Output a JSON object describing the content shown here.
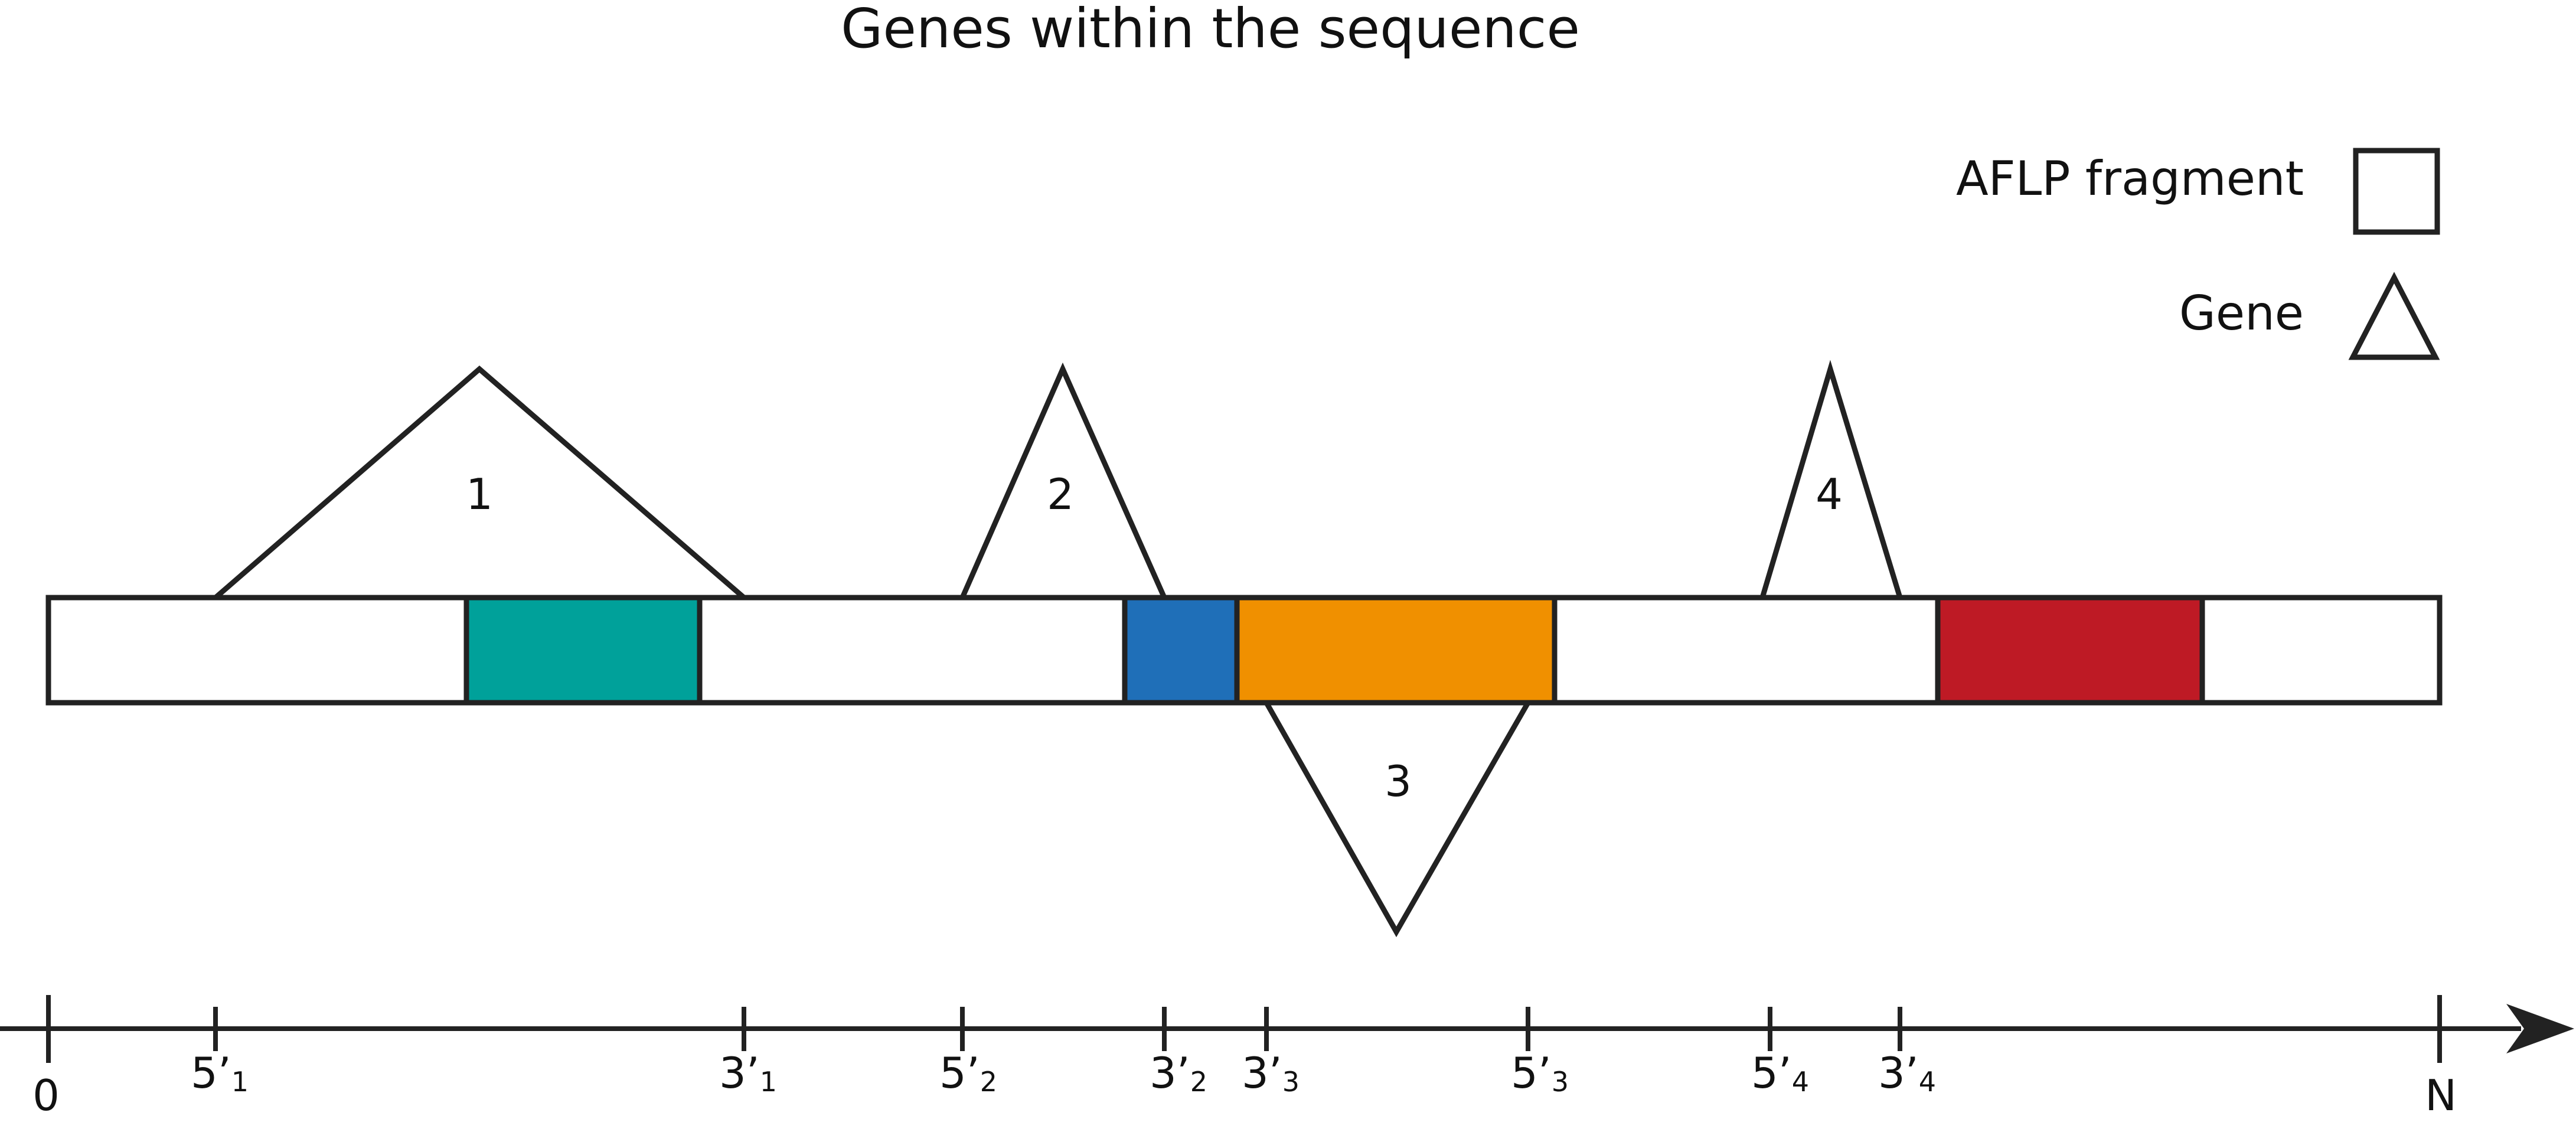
{
  "title": "Genes within the sequence",
  "legend": {
    "fragment_label": "AFLP fragment",
    "gene_label": "Gene"
  },
  "colors": {
    "outline": "#222222",
    "fragment_teal": "#00A19A",
    "fragment_blue": "#1F6FB8",
    "fragment_orange": "#F09000",
    "fragment_red": "#BE1A25"
  },
  "genes": [
    {
      "label": "1",
      "start_tick": "5'1",
      "end_tick": "3'1",
      "side": "above"
    },
    {
      "label": "2",
      "start_tick": "5'2",
      "end_tick": "3'2",
      "side": "above"
    },
    {
      "label": "3",
      "start_tick": "3'3",
      "end_tick": "5'3",
      "side": "below"
    },
    {
      "label": "4",
      "start_tick": "5'4",
      "end_tick": "3'4",
      "side": "above"
    }
  ],
  "axis": {
    "start_label": "0",
    "end_label": "N",
    "ticks": [
      {
        "main": "5’",
        "sub": "1"
      },
      {
        "main": "3’",
        "sub": "1"
      },
      {
        "main": "5’",
        "sub": "2"
      },
      {
        "main": "3’",
        "sub": "2"
      },
      {
        "main": "3’",
        "sub": "3"
      },
      {
        "main": "5’",
        "sub": "3"
      },
      {
        "main": "5’",
        "sub": "4"
      },
      {
        "main": "3’",
        "sub": "4"
      }
    ]
  }
}
